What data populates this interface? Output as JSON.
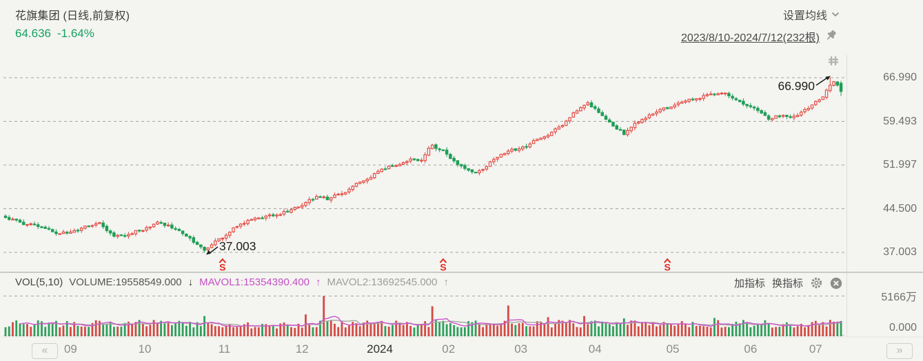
{
  "header": {
    "title": "花旗集团 (日线,前复权)",
    "last_price": "64.636",
    "change_pct": "-1.64%",
    "ma_settings_label": "设置均线",
    "range_label": "2023/8/10-2024/7/12(232根)"
  },
  "price_axis": {
    "labels": [
      "66.990",
      "59.493",
      "51.997",
      "44.500",
      "37.003"
    ]
  },
  "annotations": {
    "high_label": "66.990",
    "low_label": "37.003"
  },
  "volume_header": {
    "indicator": "VOL(5,10)",
    "volume_label": "VOLUME:19558549.000",
    "volume_arrow": "↓",
    "mavol1_label": "MAVOL1:15354390.400",
    "mavol1_arrow": "↑",
    "mavol2_label": "MAVOL2:13692545.000",
    "mavol2_arrow": "↑",
    "add_indicator_label": "加指标",
    "switch_indicator_label": "换指标"
  },
  "volume_axis": {
    "max_label": "5166万",
    "min_label": "0.000"
  },
  "time_axis": {
    "prev_label": "«",
    "next_label": "»",
    "labels": [
      {
        "text": "09",
        "bar": 18
      },
      {
        "text": "10",
        "bar": 38.5
      },
      {
        "text": "11",
        "bar": 60.5
      },
      {
        "text": "12",
        "bar": 82
      },
      {
        "text": "2024",
        "bar": 103.5,
        "dark": true
      },
      {
        "text": "02",
        "bar": 122.5
      },
      {
        "text": "03",
        "bar": 142.5
      },
      {
        "text": "04",
        "bar": 163
      },
      {
        "text": "05",
        "bar": 184.5
      },
      {
        "text": "06",
        "bar": 206
      },
      {
        "text": "07",
        "bar": 224
      }
    ]
  },
  "colors": {
    "up": "#e2443c",
    "down": "#1f9e56",
    "vol_up": "#d24a43",
    "vol_down": "#2e9e5b",
    "mavol1": "#cc53cc",
    "mavol2": "#a6a6a3",
    "grid": "#a3a3a0",
    "quote_green": "#14a25e",
    "marker_red": "#e02a1f",
    "annotation": "#1d1d1d"
  },
  "chart_data": {
    "type": "candlestick",
    "symbol": "花旗集团",
    "period": "日线",
    "adjustment": "前复权",
    "date_range": "2023/8/10-2024/7/12",
    "bar_count": 232,
    "last_close": 64.636,
    "prev_close": 65.71,
    "change_pct": -1.64,
    "annotated_high": 66.99,
    "annotated_high_bar": 228,
    "annotated_low": 37.003,
    "annotated_low_bar": 55,
    "y_axis_ticks": [
      66.99,
      59.493,
      51.997,
      44.5,
      37.003
    ],
    "close_anchors": [
      [
        0,
        42.8
      ],
      [
        5,
        42.0
      ],
      [
        10,
        41.2
      ],
      [
        14,
        40.6
      ],
      [
        18,
        40.3
      ],
      [
        22,
        41.3
      ],
      [
        26,
        41.7
      ],
      [
        30,
        39.9
      ],
      [
        34,
        40.3
      ],
      [
        38,
        41.0
      ],
      [
        43,
        42.1
      ],
      [
        47,
        41.0
      ],
      [
        50,
        39.6
      ],
      [
        53,
        38.2
      ],
      [
        55,
        37.4
      ],
      [
        57,
        38.4
      ],
      [
        60,
        39.5
      ],
      [
        63,
        41.0
      ],
      [
        67,
        42.3
      ],
      [
        71,
        42.9
      ],
      [
        75,
        43.5
      ],
      [
        79,
        44.4
      ],
      [
        83,
        45.6
      ],
      [
        86,
        46.5
      ],
      [
        89,
        46.1
      ],
      [
        93,
        47.3
      ],
      [
        97,
        48.6
      ],
      [
        100,
        49.6
      ],
      [
        104,
        51.2
      ],
      [
        108,
        52.1
      ],
      [
        112,
        53.3
      ],
      [
        115,
        52.7
      ],
      [
        118,
        55.5
      ],
      [
        121,
        54.3
      ],
      [
        124,
        52.6
      ],
      [
        127,
        51.2
      ],
      [
        131,
        51.0
      ],
      [
        135,
        52.9
      ],
      [
        139,
        54.2
      ],
      [
        143,
        54.9
      ],
      [
        147,
        56.3
      ],
      [
        151,
        57.8
      ],
      [
        155,
        59.6
      ],
      [
        158,
        61.3
      ],
      [
        161,
        62.4
      ],
      [
        164,
        61.2
      ],
      [
        167,
        59.6
      ],
      [
        171,
        57.4
      ],
      [
        174,
        58.9
      ],
      [
        178,
        60.6
      ],
      [
        182,
        61.7
      ],
      [
        186,
        62.4
      ],
      [
        190,
        63.3
      ],
      [
        194,
        64.2
      ],
      [
        198,
        64.5
      ],
      [
        202,
        63.6
      ],
      [
        205,
        62.5
      ],
      [
        208,
        61.1
      ],
      [
        211,
        60.0
      ],
      [
        214,
        60.4
      ],
      [
        217,
        60.2
      ],
      [
        220,
        61.0
      ],
      [
        223,
        62.3
      ],
      [
        226,
        64.0
      ],
      [
        228,
        65.9
      ],
      [
        229,
        66.3
      ],
      [
        230,
        65.71
      ],
      [
        231,
        64.636
      ]
    ],
    "event_markers": {
      "glyph": "S",
      "bar_indices": [
        60,
        121,
        183
      ]
    },
    "volume": {
      "current": 19558549.0,
      "mavol1": 15354390.4,
      "mavol2": 13692545.0,
      "axis_max_wan": 5166,
      "typical_range_wan": [
        1100,
        2100
      ],
      "spikes_wan": {
        "55": 2600,
        "83": 2800,
        "88": 5166,
        "118": 3850,
        "139": 3950,
        "150": 2450,
        "160": 2600,
        "171": 2300,
        "196": 2350,
        "228": 2100,
        "231": 1956
      }
    }
  }
}
